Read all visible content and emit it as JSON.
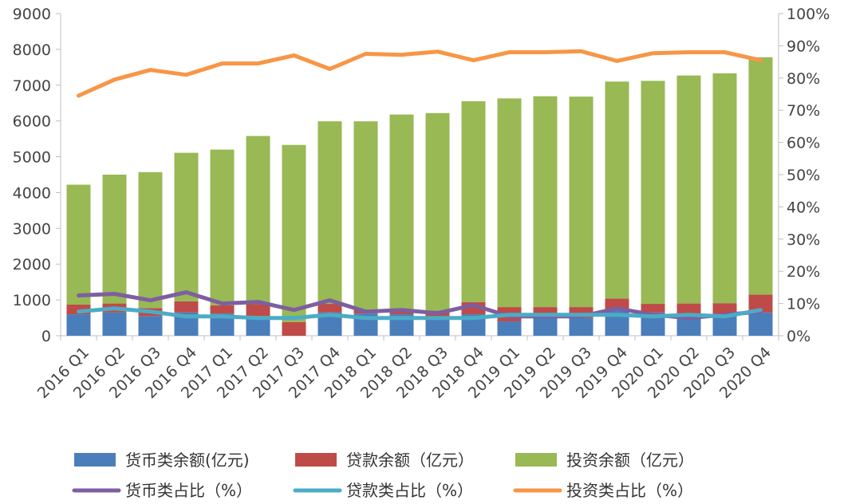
{
  "chart_data": {
    "type": "bar",
    "stacked": true,
    "categories": [
      "2016 Q1",
      "2016 Q2",
      "2016 Q3",
      "2016 Q4",
      "2017 Q1",
      "2017 Q2",
      "2017 Q3",
      "2017 Q4",
      "2018 Q1",
      "2018 Q2",
      "2018 Q3",
      "2018 Q4",
      "2019 Q1",
      "2019 Q2",
      "2019 Q3",
      "2019 Q4",
      "2020 Q1",
      "2020 Q2",
      "2020 Q3",
      "2020 Q4"
    ],
    "y_left": {
      "min": 0,
      "max": 9000,
      "step": 1000,
      "ticks": [
        "0",
        "1000",
        "2000",
        "3000",
        "4000",
        "5000",
        "6000",
        "7000",
        "8000",
        "9000"
      ]
    },
    "y_right": {
      "min": 0,
      "max": 100,
      "step": 10,
      "ticks": [
        "0%",
        "10%",
        "20%",
        "30%",
        "40%",
        "50%",
        "60%",
        "70%",
        "80%",
        "90%",
        "100%"
      ]
    },
    "bar_series": [
      {
        "name": "货币类余额(亿元)",
        "color": "#4A7EBB",
        "values": [
          600,
          650,
          550,
          650,
          620,
          550,
          0,
          650,
          620,
          600,
          500,
          600,
          400,
          500,
          500,
          700,
          650,
          500,
          550,
          650
        ]
      },
      {
        "name": "贷款余额（亿元）",
        "color": "#BE4B48",
        "values": [
          270,
          250,
          220,
          310,
          230,
          330,
          380,
          240,
          120,
          110,
          200,
          340,
          400,
          300,
          300,
          340,
          240,
          400,
          360,
          500
        ]
      },
      {
        "name": "投资余额（亿元）",
        "color": "#98B954",
        "values": [
          3350,
          3600,
          3800,
          4150,
          4350,
          4700,
          4950,
          5100,
          5250,
          5470,
          5520,
          5610,
          5830,
          5890,
          5880,
          6060,
          6230,
          6370,
          6420,
          6630
        ]
      }
    ],
    "line_series": [
      {
        "name": "货币类占比（%）",
        "color": "#7D5FA0",
        "values": [
          12.5,
          13,
          11,
          13.5,
          10,
          10.5,
          8,
          11,
          7.5,
          8,
          7,
          9.5,
          6,
          6,
          6,
          8.5,
          6.5,
          5.5,
          6.5,
          7.5
        ]
      },
      {
        "name": "贷款类占比（%）",
        "color": "#4BACC6",
        "values": [
          7.5,
          8.5,
          7.5,
          6,
          6,
          5.5,
          5.5,
          6.5,
          5.5,
          5.5,
          5.5,
          5.5,
          6.5,
          6.5,
          6.5,
          6.5,
          6,
          6.5,
          6,
          8
        ]
      },
      {
        "name": "投资类占比（%）",
        "color": "#F79646",
        "values": [
          74.5,
          79.5,
          82.5,
          81,
          84.5,
          84.5,
          87,
          82.8,
          87.5,
          87.2,
          88.2,
          85.5,
          88,
          88,
          88.3,
          85.3,
          87.7,
          88,
          88,
          85.5
        ]
      }
    ],
    "legend_position": "bottom",
    "grid": false
  }
}
